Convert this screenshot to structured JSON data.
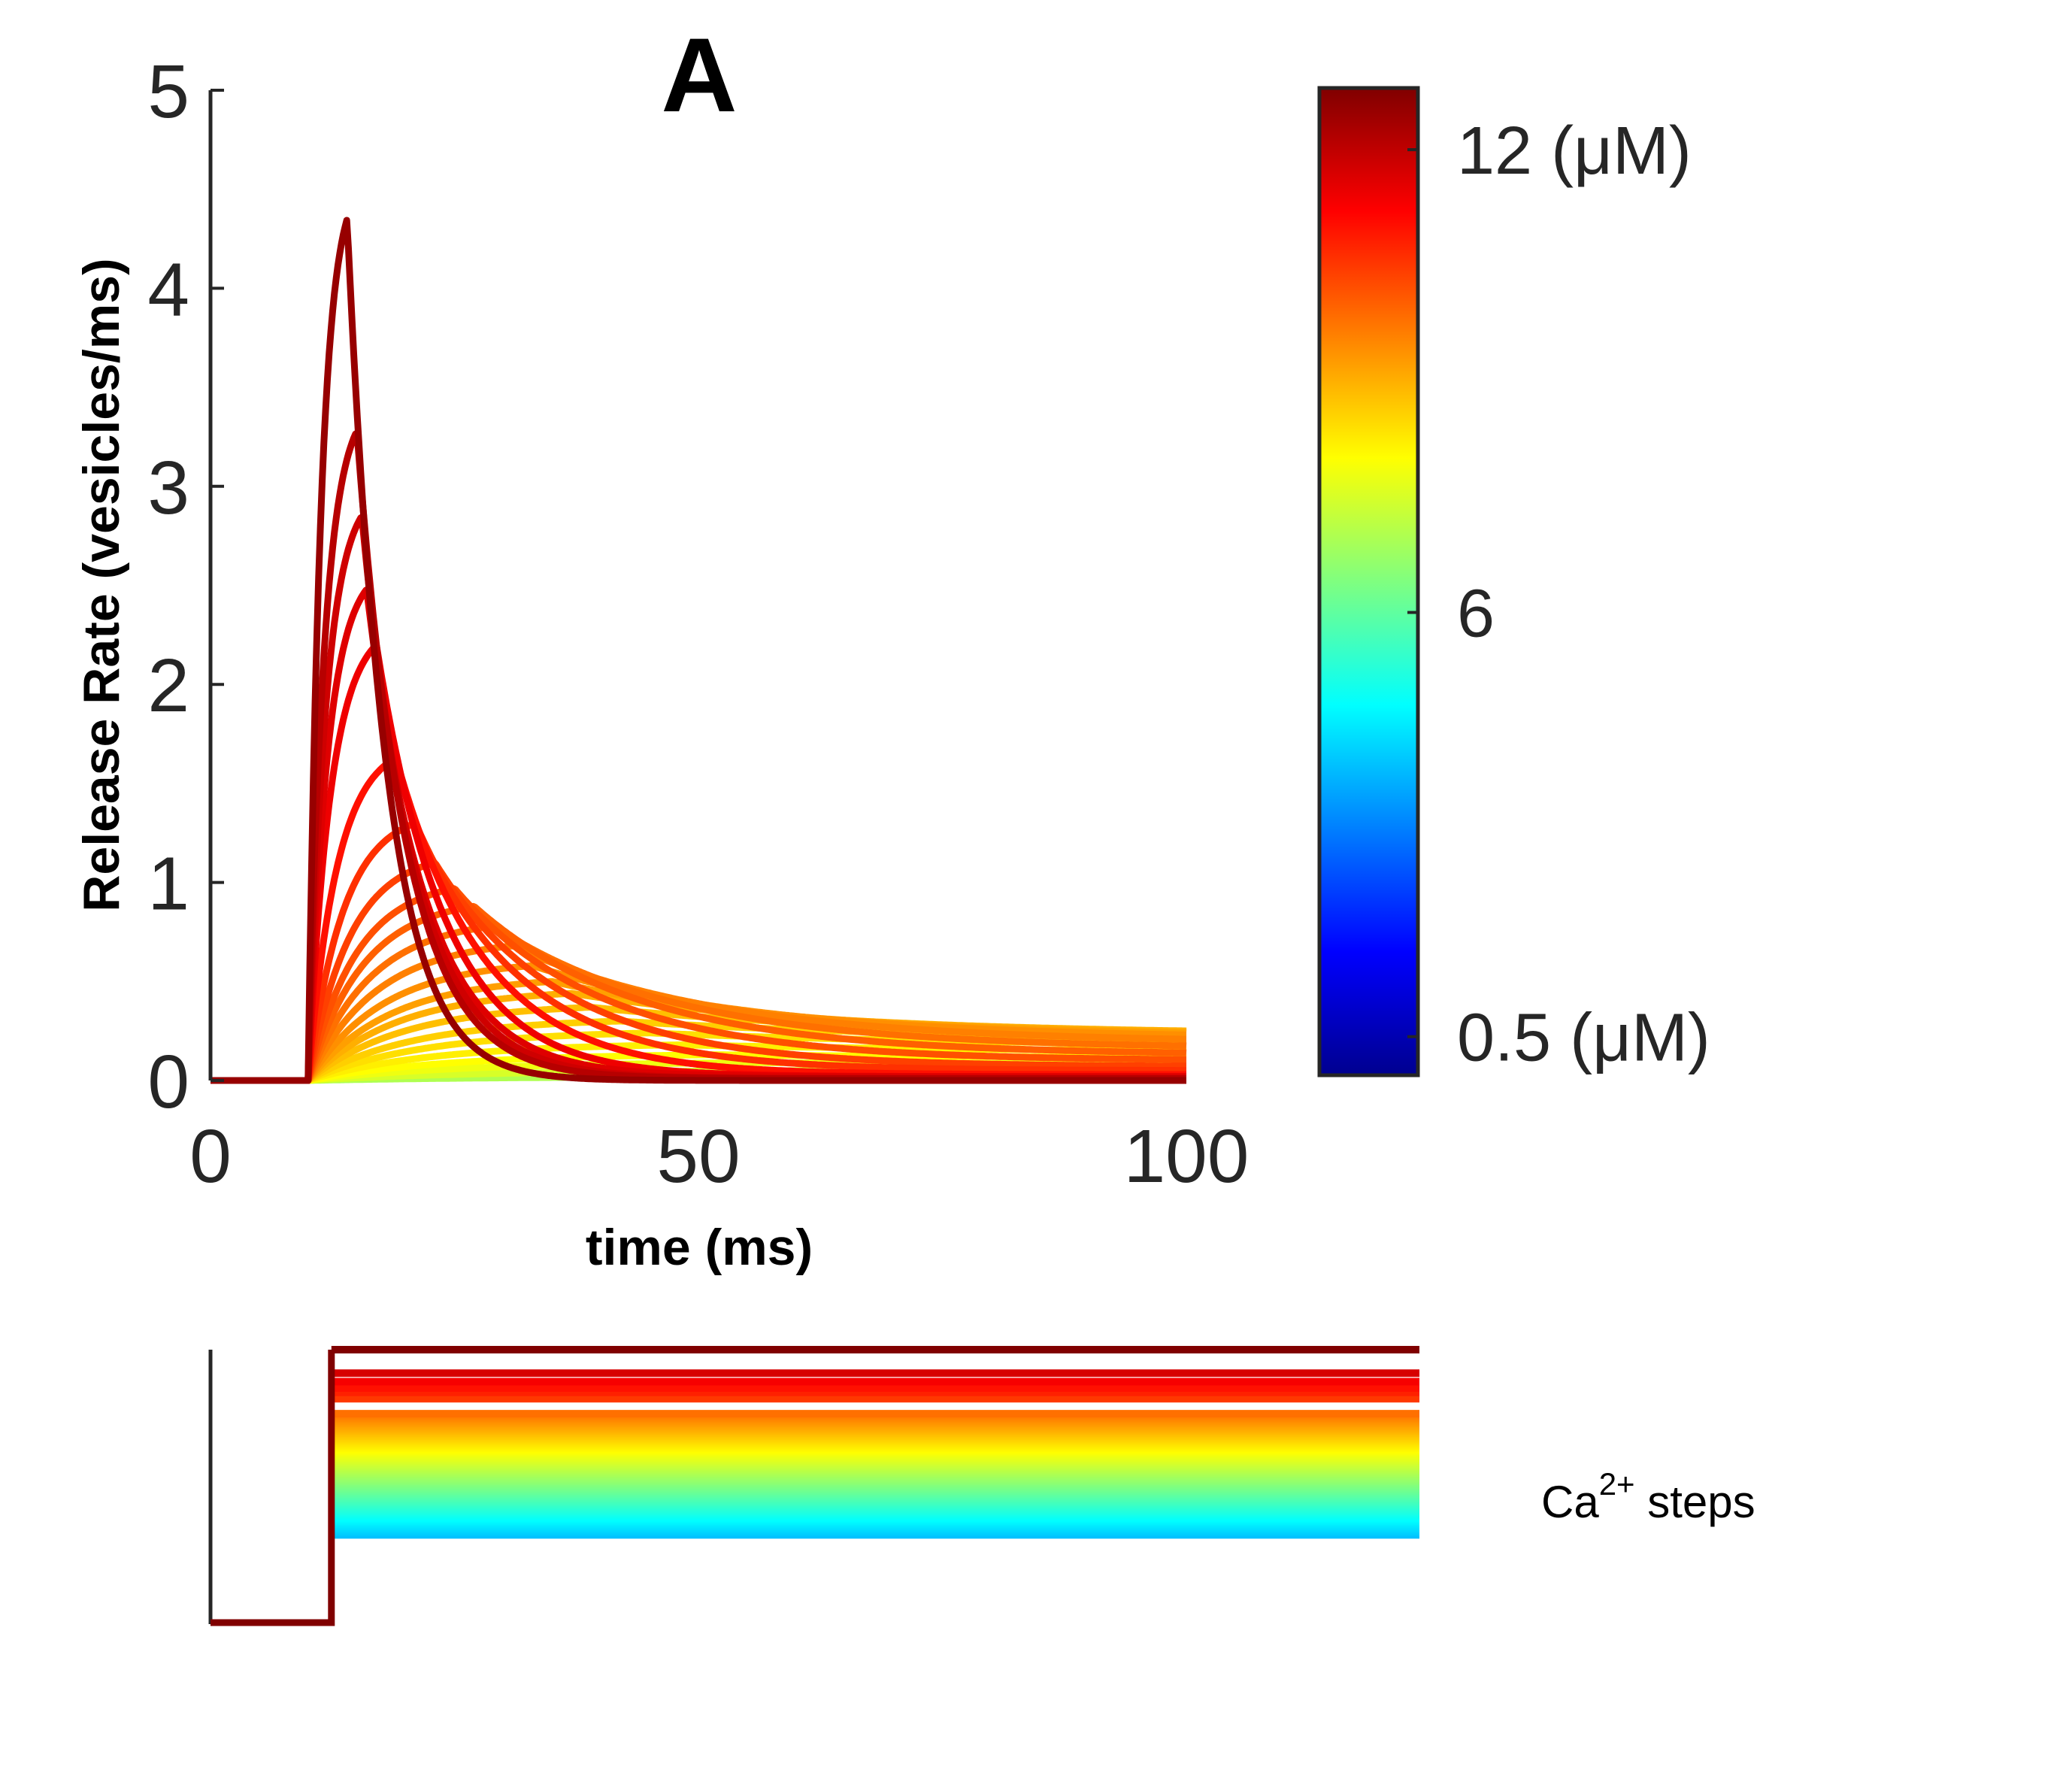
{
  "figure": {
    "panel_letter": "A",
    "step_label_main": "Ca",
    "step_label_sup": "2+",
    "step_label_rest": " steps"
  },
  "colorbar": {
    "colormap": "jet",
    "range": [
      0,
      12.8
    ],
    "labels": [
      {
        "value": 12,
        "text": "12  (μM)"
      },
      {
        "value": 6,
        "text": "6"
      },
      {
        "value": 0.5,
        "text": "0.5 (μM)"
      }
    ]
  },
  "chart_data": [
    {
      "type": "line",
      "title": "A",
      "xlabel": "time (ms)",
      "ylabel": "Release Rate (vesicles/ms)",
      "xlim": [
        0,
        100
      ],
      "ylim": [
        0,
        5
      ],
      "x_ticks": [
        0,
        50,
        100
      ],
      "y_ticks": [
        0,
        1,
        2,
        3,
        4,
        5
      ],
      "grid": false,
      "legend": "colorbar-right",
      "onset_ms": 10,
      "series": [
        {
          "ca_uM": 12.5,
          "peak_time_ms": 14.0,
          "peak": 4.35,
          "tail_at_100ms": 0.0
        },
        {
          "ca_uM": 12.1,
          "peak_time_ms": 15.0,
          "peak": 3.28,
          "tail_at_100ms": 0.01
        },
        {
          "ca_uM": 11.8,
          "peak_time_ms": 15.5,
          "peak": 2.85,
          "tail_at_100ms": 0.01
        },
        {
          "ca_uM": 11.6,
          "peak_time_ms": 16.0,
          "peak": 2.48,
          "tail_at_100ms": 0.02
        },
        {
          "ca_uM": 11.4,
          "peak_time_ms": 17.0,
          "peak": 2.2,
          "tail_at_100ms": 0.02
        },
        {
          "ca_uM": 11.0,
          "peak_time_ms": 19.0,
          "peak": 1.63,
          "tail_at_100ms": 0.03
        },
        {
          "ca_uM": 10.6,
          "peak_time_ms": 21.0,
          "peak": 1.3,
          "tail_at_100ms": 0.05
        },
        {
          "ca_uM": 10.4,
          "peak_time_ms": 23.0,
          "peak": 1.1,
          "tail_at_100ms": 0.07
        },
        {
          "ca_uM": 10.2,
          "peak_time_ms": 25.0,
          "peak": 0.97,
          "tail_at_100ms": 0.1
        },
        {
          "ca_uM": 10.0,
          "peak_time_ms": 27.0,
          "peak": 0.88,
          "tail_at_100ms": 0.13
        },
        {
          "ca_uM": 9.8,
          "peak_time_ms": 29.0,
          "peak": 0.78,
          "tail_at_100ms": 0.16
        },
        {
          "ca_uM": 9.6,
          "peak_time_ms": 31.0,
          "peak": 0.68,
          "tail_at_100ms": 0.19
        },
        {
          "ca_uM": 9.4,
          "peak_time_ms": 33.0,
          "peak": 0.58,
          "tail_at_100ms": 0.21
        },
        {
          "ca_uM": 9.2,
          "peak_time_ms": 35.0,
          "peak": 0.5,
          "tail_at_100ms": 0.22
        },
        {
          "ca_uM": 9.0,
          "peak_time_ms": 37.0,
          "peak": 0.44,
          "tail_at_100ms": 0.23
        },
        {
          "ca_uM": 8.8,
          "peak_time_ms": 39.0,
          "peak": 0.37,
          "tail_at_100ms": 0.22
        },
        {
          "ca_uM": 8.6,
          "peak_time_ms": 42.0,
          "peak": 0.3,
          "tail_at_100ms": 0.2
        },
        {
          "ca_uM": 8.4,
          "peak_time_ms": 45.0,
          "peak": 0.24,
          "tail_at_100ms": 0.17
        },
        {
          "ca_uM": 8.2,
          "peak_time_ms": 48.0,
          "peak": 0.18,
          "tail_at_100ms": 0.14
        },
        {
          "ca_uM": 8.0,
          "peak_time_ms": 52.0,
          "peak": 0.13,
          "tail_at_100ms": 0.11
        },
        {
          "ca_uM": 7.8,
          "peak_time_ms": 56.0,
          "peak": 0.09,
          "tail_at_100ms": 0.08
        },
        {
          "ca_uM": 7.5,
          "peak_time_ms": 62.0,
          "peak": 0.05,
          "tail_at_100ms": 0.05
        },
        {
          "ca_uM": 7.0,
          "peak_time_ms": 70.0,
          "peak": 0.02,
          "tail_at_100ms": 0.02
        }
      ]
    },
    {
      "type": "line",
      "title": "Ca2+ steps",
      "xlim": [
        0,
        125
      ],
      "step_time_ms": 12.5,
      "ylim": [
        0,
        12.8
      ],
      "grid": false,
      "step_levels_uM": [
        12.8,
        11.7,
        11.3,
        11.0,
        10.8,
        10.5,
        9.8
      ]
    }
  ]
}
